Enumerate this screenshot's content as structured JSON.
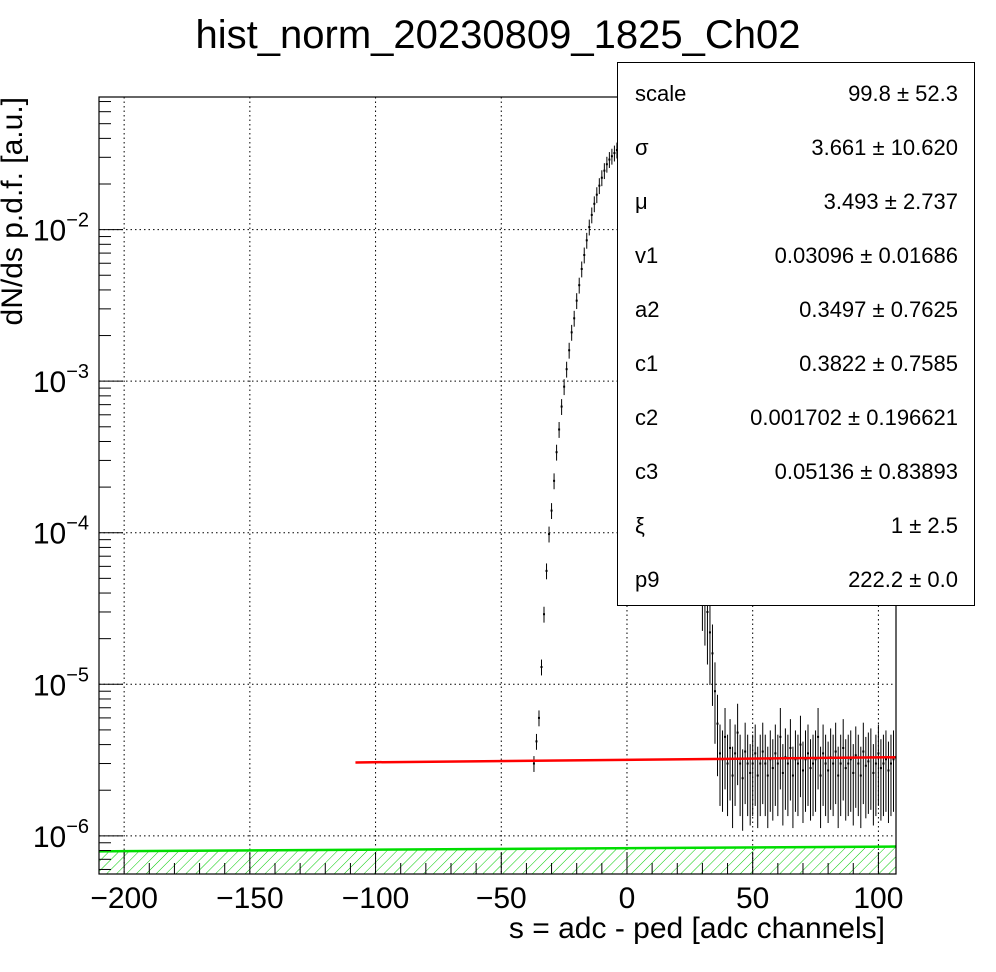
{
  "chart_data": {
    "type": "scatter",
    "title": "hist_norm_20230809_1825_Ch02",
    "xlabel": "s = adc - ped [adc channels]",
    "ylabel": "dN/ds p.d.f. [a.u.]",
    "xlim": [
      -210,
      107
    ],
    "ylim": [
      5.6e-07,
      0.075
    ],
    "y_scale": "log",
    "grid": true,
    "x_ticks": [
      {
        "value": -200,
        "label": "−200"
      },
      {
        "value": -150,
        "label": "−150"
      },
      {
        "value": -100,
        "label": "−100"
      },
      {
        "value": -50,
        "label": "−50"
      },
      {
        "value": 0,
        "label": "0"
      },
      {
        "value": 50,
        "label": "50"
      },
      {
        "value": 100,
        "label": "100"
      }
    ],
    "y_ticks": [
      {
        "value": 1e-06,
        "base": "10",
        "exp": "−6"
      },
      {
        "value": 1e-05,
        "base": "10",
        "exp": "−5"
      },
      {
        "value": 0.0001,
        "base": "10",
        "exp": "−4"
      },
      {
        "value": 0.001,
        "base": "10",
        "exp": "−3"
      },
      {
        "value": 0.01,
        "base": "10",
        "exp": "−2"
      }
    ],
    "series": [
      {
        "color": "#000000",
        "style": "points-with-error-bars",
        "x": [
          -37,
          -36,
          -35,
          -34,
          -33,
          -32,
          -31,
          -30,
          -29,
          -28,
          -27,
          -26,
          -25,
          -24,
          -23,
          -22,
          -21,
          -20,
          -19,
          -18,
          -17,
          -16,
          -15,
          -14,
          -13,
          -12,
          -11,
          -10,
          -9,
          -8,
          -7,
          -6,
          -5,
          -4,
          -3,
          -2,
          30,
          31,
          32,
          33,
          34,
          35,
          36,
          37,
          38,
          39,
          40,
          41,
          42,
          43,
          44,
          45,
          46,
          47,
          48,
          49,
          50,
          51,
          52,
          53,
          54,
          55,
          56,
          57,
          58,
          59,
          60,
          61,
          62,
          63,
          64,
          65,
          66,
          67,
          68,
          69,
          70,
          71,
          72,
          73,
          74,
          75,
          76,
          77,
          78,
          79,
          80,
          81,
          82,
          83,
          84,
          85,
          86,
          87,
          88,
          89,
          90,
          91,
          92,
          93,
          94,
          95,
          96,
          97,
          98,
          99,
          100,
          101,
          102,
          103,
          104,
          105,
          106
        ],
        "y": [
          3e-06,
          4.2e-06,
          6e-06,
          1.3e-05,
          2.9e-05,
          5.6e-05,
          9.8e-05,
          0.00014,
          0.00022,
          0.00034,
          0.00048,
          0.00068,
          0.00092,
          0.0012,
          0.0016,
          0.0021,
          0.0026,
          0.0034,
          0.0043,
          0.0055,
          0.0068,
          0.0085,
          0.0104,
          0.0125,
          0.0148,
          0.017,
          0.0195,
          0.022,
          0.0245,
          0.027,
          0.029,
          0.0305,
          0.032,
          0.0335,
          0.0345,
          0.0355,
          5e-05,
          4e-05,
          3e-05,
          2.2e-05,
          1.6e-05,
          9e-06,
          5.5e-06,
          3.5e-06,
          3.2e-06,
          4.5e-06,
          3e-06,
          3.8e-06,
          2.5e-06,
          3.5e-06,
          4.8e-06,
          3e-06,
          2.4e-06,
          3.6e-06,
          3e-06,
          2.6e-06,
          3e-06,
          3.5e-06,
          2.5e-06,
          3e-06,
          3.6e-06,
          3e-06,
          2.5e-06,
          3.2e-06,
          2.8e-06,
          3.5e-06,
          3e-06,
          4.5e-06,
          2.6e-06,
          3.3e-06,
          3e-06,
          3.8e-06,
          2.5e-06,
          3.2e-06,
          3e-06,
          4e-06,
          2.7e-06,
          3.2e-06,
          3.5e-06,
          2.8e-06,
          3e-06,
          3.2e-06,
          4.5e-06,
          2.5e-06,
          3.5e-06,
          3e-06,
          2.7e-06,
          3.3e-06,
          3e-06,
          3.6e-06,
          2.5e-06,
          3e-06,
          3.8e-06,
          2.8e-06,
          3e-06,
          3.2e-06,
          2.6e-06,
          3.4e-06,
          3e-06,
          2.5e-06,
          3.6e-06,
          2.9e-06,
          3.1e-06,
          3.3e-06,
          2.6e-06,
          3e-06,
          3.5e-06,
          2.8e-06,
          3e-06,
          3.2e-06,
          2.7e-06,
          3e-06,
          3.2e-06
        ]
      },
      {
        "color": "#ff0000",
        "style": "line",
        "x": [
          -108,
          107
        ],
        "y": [
          3.05e-06,
          3.3e-06
        ]
      },
      {
        "color": "#00dd00",
        "style": "hatched-area",
        "x": [
          -210,
          107
        ],
        "y": [
          7.9e-07,
          8.5e-07
        ]
      }
    ]
  },
  "stats": [
    {
      "name": "scale",
      "value": "99.8 ± 52.3"
    },
    {
      "name": "σ",
      "value": "3.661 ± 10.620"
    },
    {
      "name": "μ",
      "value": "3.493 ± 2.737"
    },
    {
      "name": "v1",
      "value": "0.03096 ± 0.01686"
    },
    {
      "name": "a2",
      "value": "0.3497 ± 0.7625"
    },
    {
      "name": "c1",
      "value": "0.3822 ± 0.7585"
    },
    {
      "name": "c2",
      "value": "0.001702 ± 0.196621"
    },
    {
      "name": "c3",
      "value": "0.05136 ± 0.83893"
    },
    {
      "name": "ξ",
      "value": "1 ± 2.5"
    },
    {
      "name": "p9",
      "value": "222.2 ± 0.0"
    }
  ]
}
